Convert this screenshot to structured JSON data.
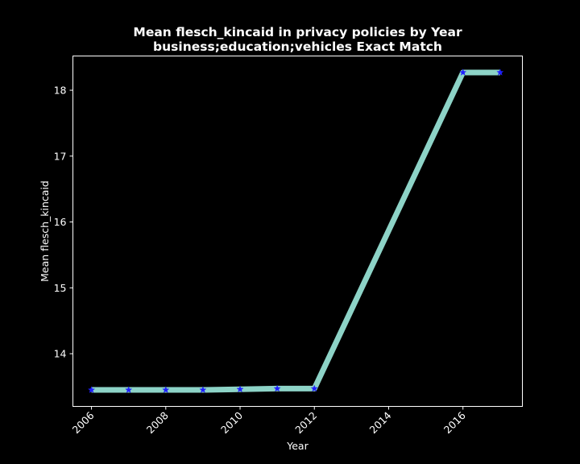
{
  "chart_data": {
    "type": "line",
    "title": "Mean flesch_kincaid in privacy policies by Year",
    "subtitle": "business;education;vehicles Exact Match",
    "xlabel": "Year",
    "ylabel": "Mean flesch_kincaid",
    "xlim": [
      2005.5,
      2017.6
    ],
    "ylim": [
      13.2,
      18.52
    ],
    "xticks": [
      2006,
      2008,
      2010,
      2012,
      2014,
      2016
    ],
    "yticks": [
      14,
      15,
      16,
      17,
      18
    ],
    "series": [
      {
        "x": [
          2006,
          2007,
          2008,
          2009,
          2010,
          2011,
          2012,
          2016,
          2017
        ],
        "y": [
          13.45,
          13.45,
          13.45,
          13.45,
          13.46,
          13.47,
          13.47,
          18.27,
          18.27
        ],
        "line_color": "#8dd3c7",
        "marker": "star",
        "marker_color": "#1f1fff"
      }
    ],
    "grid": false,
    "legend": false,
    "background": "#000000",
    "foreground": "#ffffff"
  }
}
